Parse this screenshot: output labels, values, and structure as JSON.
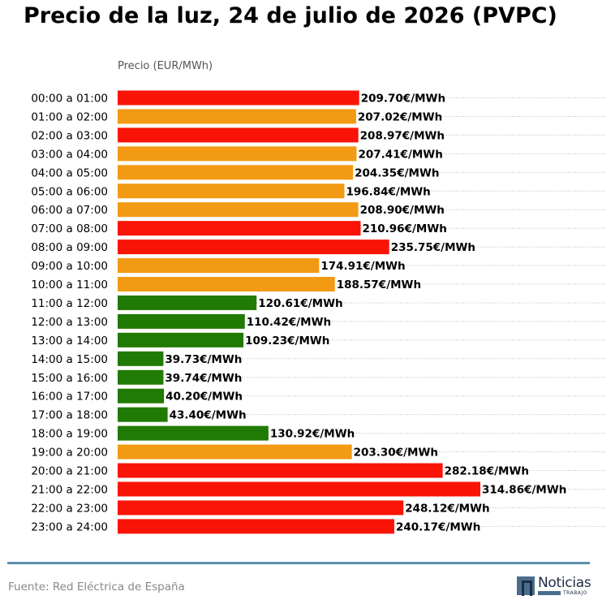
{
  "title": "Precio de la luz, 24 de julio de 2026 (PVPC)",
  "source": "Fuente: Red Eléctrica de España",
  "logo": {
    "name": "Noticias",
    "subtitle": "TRABAJO"
  },
  "colors": {
    "high": "#f91407",
    "medium": "#f29a13",
    "low": "#217a04",
    "footer_line": "#5b90ab"
  },
  "chart_data": {
    "type": "bar",
    "orientation": "horizontal",
    "title": "Precio de la luz, 24 de julio de 2026 (PVPC)",
    "ylabel": "Precio (EUR/MWh)",
    "unit_suffix": "€/MWh",
    "xlim": [
      0,
      330
    ],
    "grid": "dotted horizontal",
    "categories": [
      "00:00 a 01:00",
      "01:00 a 02:00",
      "02:00 a 03:00",
      "03:00 a 04:00",
      "04:00 a 05:00",
      "05:00 a 06:00",
      "06:00 a 07:00",
      "07:00 a 08:00",
      "08:00 a 09:00",
      "09:00 a 10:00",
      "10:00 a 11:00",
      "11:00 a 12:00",
      "12:00 a 13:00",
      "13:00 a 14:00",
      "14:00 a 15:00",
      "15:00 a 16:00",
      "16:00 a 17:00",
      "17:00 a 18:00",
      "18:00 a 19:00",
      "19:00 a 20:00",
      "20:00 a 21:00",
      "21:00 a 22:00",
      "22:00 a 23:00",
      "23:00 a 24:00"
    ],
    "values": [
      209.7,
      207.02,
      208.97,
      207.41,
      204.35,
      196.84,
      208.9,
      210.96,
      235.75,
      174.91,
      188.57,
      120.61,
      110.42,
      109.23,
      39.73,
      39.74,
      40.2,
      43.4,
      130.92,
      203.3,
      282.18,
      314.86,
      248.12,
      240.17
    ],
    "labels": [
      "209.70€/MWh",
      "207.02€/MWh",
      "208.97€/MWh",
      "207.41€/MWh",
      "204.35€/MWh",
      "196.84€/MWh",
      "208.90€/MWh",
      "210.96€/MWh",
      "235.75€/MWh",
      "174.91€/MWh",
      "188.57€/MWh",
      "120.61€/MWh",
      "110.42€/MWh",
      "109.23€/MWh",
      "39.73€/MWh",
      "39.74€/MWh",
      "40.20€/MWh",
      "43.40€/MWh",
      "130.92€/MWh",
      "203.30€/MWh",
      "282.18€/MWh",
      "314.86€/MWh",
      "248.12€/MWh",
      "240.17€/MWh"
    ],
    "levels": [
      "high",
      "medium",
      "high",
      "medium",
      "medium",
      "medium",
      "medium",
      "high",
      "high",
      "medium",
      "medium",
      "low",
      "low",
      "low",
      "low",
      "low",
      "low",
      "low",
      "low",
      "medium",
      "high",
      "high",
      "high",
      "high"
    ]
  }
}
